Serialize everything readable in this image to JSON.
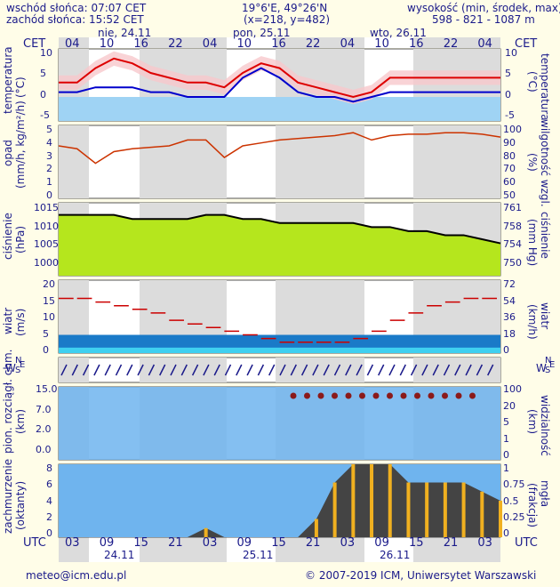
{
  "header": {
    "sunrise": "wschód słońca: 07:07 CET",
    "sunset": "zachód słońca: 15:52 CET",
    "coords": "19°6'E, 49°26'N",
    "grid": "(x=218, y=482)",
    "height_label": "wysokość (min, środek, max)",
    "height_values": "598 - 821 - 1087 m"
  },
  "timezone_top": "CET",
  "timezone_bottom": "UTC",
  "days_top": [
    "nie, 24.11",
    "pon, 25.11",
    "wto, 26.11"
  ],
  "hours_top": [
    "04",
    "10",
    "16",
    "22",
    "04",
    "10",
    "16",
    "22",
    "04",
    "10",
    "16",
    "22",
    "04"
  ],
  "hours_bottom": [
    "03",
    "09",
    "15",
    "21",
    "03",
    "09",
    "15",
    "21",
    "03",
    "09",
    "15",
    "21",
    "03"
  ],
  "days_bottom": [
    "24.11",
    "25.11",
    "26.11"
  ],
  "panels": {
    "temperature": {
      "left": "temperatura",
      "left_unit": "(°C)",
      "right": "temperatura",
      "right_unit": "(°C)",
      "ticks": [
        "10",
        "5",
        "0",
        "-5"
      ]
    },
    "precip": {
      "left": "opad",
      "left_unit": "(mm/h, kg/m²/h)",
      "right": "wilgotność wzgl.",
      "right_unit": "(%)",
      "ticks_left": [
        "5",
        "4",
        "3",
        "2",
        "1",
        "0"
      ],
      "ticks_right": [
        "100",
        "90",
        "80",
        "70",
        "60",
        "50"
      ]
    },
    "pressure": {
      "left": "ciśnienie",
      "left_unit": "(hPa)",
      "right": "ciśnienie",
      "right_unit": "(mm Hg)",
      "ticks_left": [
        "1015",
        "1010",
        "1005",
        "1000"
      ],
      "ticks_right": [
        "761",
        "758",
        "754",
        "750"
      ]
    },
    "wind": {
      "left": "wiatr",
      "left_unit": "(m/s)",
      "right": "wiatr",
      "right_unit": "(km/h)",
      "ticks_left": [
        "20",
        "15",
        "10",
        "5",
        "0"
      ],
      "ticks_right": [
        "72",
        "54",
        "36",
        "18",
        "0"
      ]
    },
    "winddir": {
      "left_w": "W",
      "left_s": "S",
      "left_n": "N",
      "left_e": "E"
    },
    "cloudbase": {
      "left": "pion. rozciągł. chm.",
      "left_unit": "(km)",
      "right": "widzialność",
      "right_unit": "(km)",
      "ticks_left": [
        "15.0",
        "7.0",
        "2.0",
        "0.0"
      ],
      "ticks_right": [
        "100",
        "20",
        "5",
        "1",
        "0"
      ]
    },
    "cloud": {
      "left": "zachmurzenie",
      "left_unit": "(oktanty)",
      "right": "mgła",
      "right_unit": "(frakcja)",
      "ticks_left": [
        "8",
        "6",
        "4",
        "2",
        "0"
      ],
      "ticks_right": [
        "1",
        "0.75",
        "0.5",
        "0.25",
        "0"
      ]
    }
  },
  "footer": {
    "email": "meteo@icm.edu.pl",
    "copyright": "© 2007-2019 ICM, Uniwersytet Warszawski"
  },
  "colors": {
    "background": "#fffde8",
    "text": "#1a1a8a",
    "night": "#dcdcdc",
    "temp_line": "#dd0000",
    "dew_line": "#0000cc",
    "humidity_line": "#cc3300",
    "pressure_line": "#000000",
    "wind_gust": "#cc0000",
    "cloud_sky": "#6fb4ee",
    "precip_bar": "#f0b020"
  },
  "chart_data": {
    "type": "line",
    "x": [
      "03",
      "06",
      "09",
      "12",
      "15",
      "18",
      "21",
      "00",
      "03",
      "06",
      "09",
      "12",
      "15",
      "18",
      "21",
      "00",
      "03",
      "06",
      "09",
      "12",
      "15",
      "18",
      "21",
      "00",
      "03"
    ],
    "series": [
      {
        "values": [
          3,
          3,
          6,
          8,
          7,
          5,
          4,
          3,
          3,
          2,
          5,
          7,
          6,
          3,
          2,
          1,
          0,
          1,
          4,
          4,
          4,
          4,
          4,
          4,
          4
        ]
      },
      {
        "values": [
          1,
          1,
          2,
          2,
          2,
          1,
          1,
          0,
          0,
          0,
          4,
          6,
          4,
          1,
          0,
          0,
          -1,
          0,
          1,
          1,
          1,
          1,
          1,
          1,
          1
        ]
      }
    ],
    "humidity": [
      86,
      84,
      74,
      82,
      84,
      85,
      86,
      90,
      90,
      78,
      86,
      88,
      90,
      91,
      92,
      93,
      95,
      90,
      93,
      94,
      94,
      95,
      95,
      94,
      92
    ],
    "pressure": [
      1013,
      1013,
      1013,
      1013,
      1012,
      1012,
      1012,
      1012,
      1013,
      1013,
      1012,
      1012,
      1011,
      1011,
      1011,
      1011,
      1011,
      1010,
      1010,
      1009,
      1009,
      1008,
      1008,
      1007,
      1006
    ],
    "wind_gust": [
      15,
      15,
      14,
      13,
      12,
      11,
      9,
      8,
      7,
      6,
      5,
      4,
      3,
      3,
      3,
      3,
      4,
      6,
      9,
      11,
      13,
      14,
      15,
      15,
      15
    ],
    "cloud_cover": [
      0,
      0,
      0,
      0,
      0,
      0,
      0,
      0,
      1,
      0,
      0,
      0,
      0,
      0,
      2,
      6,
      8,
      8,
      8,
      6,
      6,
      6,
      6,
      5,
      4
    ],
    "ylim_temp": [
      -5,
      10
    ],
    "ylim_pressure": [
      998,
      1016
    ]
  }
}
